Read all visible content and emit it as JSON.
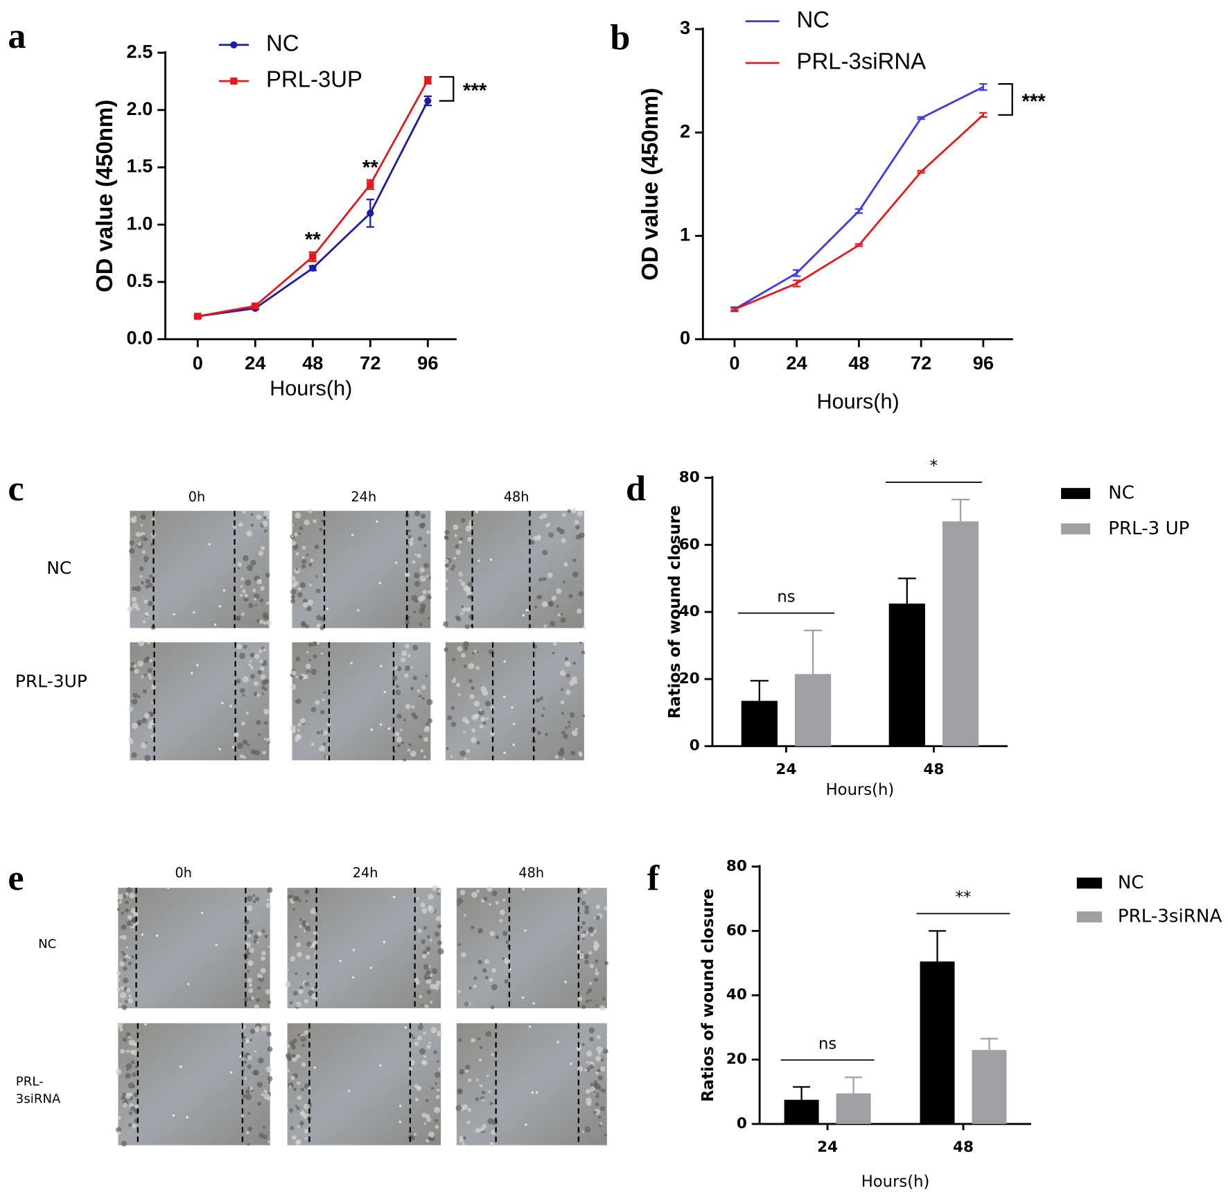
{
  "chart_data": [
    {
      "type": "line",
      "label": "a",
      "y_label": "OD value (450nm)",
      "x_label": "Hours(h)",
      "x": [
        0,
        24,
        48,
        72,
        96
      ],
      "xlim": [
        -13.5,
        108
      ],
      "xticks": [
        0,
        24,
        48,
        72,
        96
      ],
      "ylim": [
        0,
        2.5
      ],
      "yticks": [
        {
          "value": 0,
          "label": "0.0"
        },
        0.5,
        {
          "value": 1,
          "label": "1.0"
        },
        1.5,
        {
          "value": 2,
          "label": "2.0"
        },
        2.5
      ],
      "series": [
        {
          "name": "NC",
          "color": "#1c1ca8",
          "marker": "circle",
          "values": [
            0.2,
            0.27,
            0.62,
            1.1,
            2.08
          ],
          "errors": [
            0.01,
            0.01,
            0.02,
            0.12,
            0.04
          ]
        },
        {
          "name": "PRL-3UP",
          "color": "#e3191c",
          "marker": "square",
          "values": [
            0.2,
            0.29,
            0.72,
            1.35,
            2.26
          ],
          "errors": [
            0.01,
            0.01,
            0.04,
            0.04,
            0.03
          ]
        }
      ],
      "annotations": [
        {
          "text": "**",
          "x": 48
        },
        {
          "text": "**",
          "x": 72
        },
        {
          "text": "***",
          "x": 96,
          "bracket": true
        }
      ]
    },
    {
      "type": "line",
      "label": "b",
      "y_label": "OD value (450nm)",
      "x_label": "Hours(h)",
      "x": [
        0,
        24,
        48,
        72,
        96
      ],
      "xlim": [
        -12.2,
        107.5
      ],
      "xticks": [
        0,
        24,
        48,
        72,
        96
      ],
      "ylim": [
        0,
        3
      ],
      "yticks": [
        0,
        1,
        2,
        3
      ],
      "series": [
        {
          "name": "NC",
          "color": "#3b3bea",
          "values": [
            0.29,
            0.64,
            1.24,
            2.14,
            2.44
          ],
          "errors": [
            0.02,
            0.03,
            0.02,
            0.01,
            0.03
          ]
        },
        {
          "name": "PRL-3siRNA",
          "color": "#e41a1c",
          "values": [
            0.29,
            0.54,
            0.91,
            1.62,
            2.17
          ],
          "errors": [
            0.01,
            0.03,
            0.01,
            0.01,
            0.02
          ]
        }
      ],
      "annotations": [
        {
          "text": "***",
          "x": 96,
          "bracket": true
        }
      ]
    },
    {
      "type": "bar",
      "label": "d",
      "y_label": "Ratios of wound closure",
      "x_label": "Hours(h)",
      "categories": [
        "24",
        "48"
      ],
      "ylim": [
        0,
        80
      ],
      "yticks": [
        0,
        20,
        40,
        60,
        80
      ],
      "series": [
        {
          "name": "NC",
          "color": "#000000",
          "values": [
            13.5,
            42.5
          ],
          "errors": [
            6,
            7.5
          ]
        },
        {
          "name": "PRL-3 UP",
          "color": "#a0a0a4",
          "values": [
            21.5,
            67
          ],
          "errors": [
            13,
            6.5
          ]
        }
      ],
      "annotations": [
        {
          "text": "ns",
          "category": "24"
        },
        {
          "text": "*",
          "category": "48"
        }
      ]
    },
    {
      "type": "bar",
      "label": "f",
      "y_label": "Ratios of wound closure",
      "x_label": "Hours(h)",
      "categories": [
        "24",
        "48"
      ],
      "ylim": [
        0,
        80
      ],
      "yticks": [
        0,
        20,
        40,
        60,
        80
      ],
      "series": [
        {
          "name": "NC",
          "color": "#000000",
          "values": [
            7.5,
            50.5
          ],
          "errors": [
            4,
            9.5
          ]
        },
        {
          "name": "PRL-3siRNA",
          "color": "#a0a0a4",
          "values": [
            9.5,
            23
          ],
          "errors": [
            5,
            3.5
          ]
        }
      ],
      "annotations": [
        {
          "text": "ns",
          "category": "24"
        },
        {
          "text": "**",
          "category": "48"
        }
      ]
    }
  ],
  "image_panels": [
    {
      "label": "c",
      "columns": [
        "0h",
        "24h",
        "48h"
      ],
      "rows": [
        [
          "NC"
        ],
        [
          "PRL-3UP"
        ]
      ]
    },
    {
      "label": "e",
      "columns": [
        "0h",
        "24h",
        "48h"
      ],
      "rows": [
        [
          "NC"
        ],
        [
          "PRL-",
          "3siRNA"
        ]
      ]
    }
  ]
}
